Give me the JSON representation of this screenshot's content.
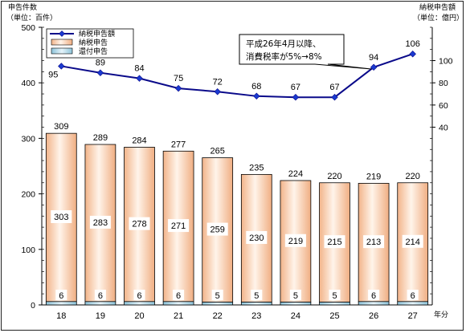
{
  "chart": {
    "left_axis_title_1": "申告件数",
    "left_axis_title_2": "（単位：百件）",
    "right_axis_title_1": "納税申告額",
    "right_axis_title_2": "（単位：億円）",
    "x_axis_unit": "年分",
    "callout_line_1": "平成26年4月以降、",
    "callout_line_2": "消費税率が5%→8%"
  },
  "legend": {
    "position": "top-left",
    "items": [
      {
        "label": "納税申告額",
        "kind": "line",
        "color": "#0a0a8a"
      },
      {
        "label": "納税申告",
        "kind": "bar",
        "color": "#f6c9a4"
      },
      {
        "label": "還付申告",
        "kind": "bar",
        "color": "#b8dcea"
      }
    ]
  },
  "chart_data": {
    "type": "bar",
    "categories": [
      "18",
      "19",
      "20",
      "21",
      "22",
      "23",
      "24",
      "25",
      "26",
      "27"
    ],
    "totals": [
      309,
      289,
      284,
      277,
      265,
      235,
      224,
      220,
      219,
      220
    ],
    "series": [
      {
        "name": "納税申告",
        "axis": "left",
        "values": [
          303,
          283,
          278,
          271,
          259,
          230,
          219,
          215,
          213,
          214
        ]
      },
      {
        "name": "還付申告",
        "axis": "left",
        "values": [
          6,
          6,
          6,
          6,
          5,
          5,
          5,
          5,
          6,
          6
        ]
      },
      {
        "name": "納税申告額",
        "axis": "right",
        "type": "line",
        "values": [
          95,
          89,
          84,
          75,
          72,
          68,
          67,
          67,
          94,
          106
        ]
      }
    ],
    "left_axis": {
      "ylim": [
        0,
        500
      ],
      "ticks": [
        0,
        100,
        200,
        300,
        400,
        500
      ]
    },
    "right_axis": {
      "ylim": [
        -120,
        130
      ],
      "ticks": [
        40,
        60,
        80,
        100
      ]
    },
    "grid": false
  }
}
